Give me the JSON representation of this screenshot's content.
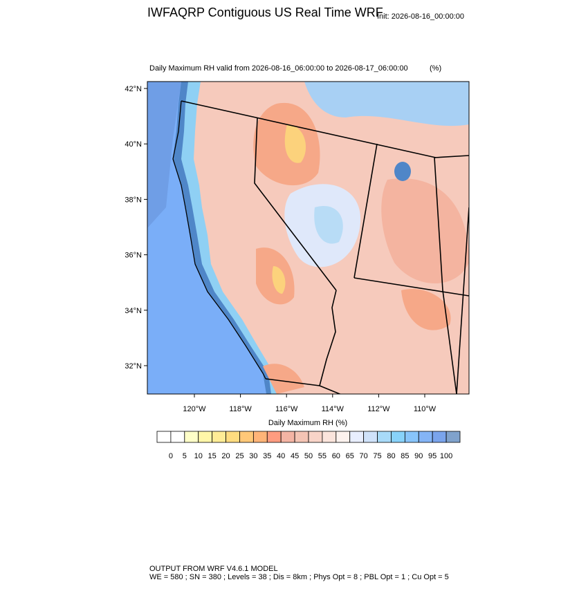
{
  "header": {
    "title": "IWFAQRP Contiguous US Real Time WRF",
    "init": "Init: 2026-08-16_00:00:00"
  },
  "map": {
    "subtitle": "Daily Maximum RH valid from 2026-08-16_06:00:00 to 2026-08-17_06:00:00",
    "units": "(%)",
    "lat_labels": [
      "42°N",
      "40°N",
      "38°N",
      "36°N",
      "34°N",
      "32°N"
    ],
    "lon_labels": [
      "120°W",
      "118°W",
      "116°W",
      "114°W",
      "112°W",
      "110°W"
    ]
  },
  "colorbar": {
    "title": "Daily Maximum RH  (%)",
    "labels": [
      "0",
      "5",
      "10",
      "15",
      "20",
      "25",
      "30",
      "35",
      "40",
      "45",
      "50",
      "55",
      "60",
      "65",
      "70",
      "75",
      "80",
      "85",
      "90",
      "95",
      "100"
    ],
    "colors": [
      "#ffffff",
      "#ffffc8",
      "#fff6a8",
      "#ffec96",
      "#ffdc80",
      "#ffc878",
      "#ffb478",
      "#ff9c80",
      "#f4b4a4",
      "#f4c4b4",
      "#f8d4c8",
      "#fbe4dc",
      "#fdf2ee",
      "#e8eeff",
      "#d0e2fa",
      "#a8daf8",
      "#88d2fa",
      "#88c4fa",
      "#84b4f6",
      "#7aa4ec",
      "#80a2cc"
    ]
  },
  "footer": {
    "line1": "OUTPUT FROM WRF V4.6.1 MODEL",
    "line2": "WE = 580 ; SN = 380 ; Levels = 38 ; Dis = 8km ; Phys Opt = 8 ; PBL Opt = 1 ; Cu Opt = 5"
  }
}
